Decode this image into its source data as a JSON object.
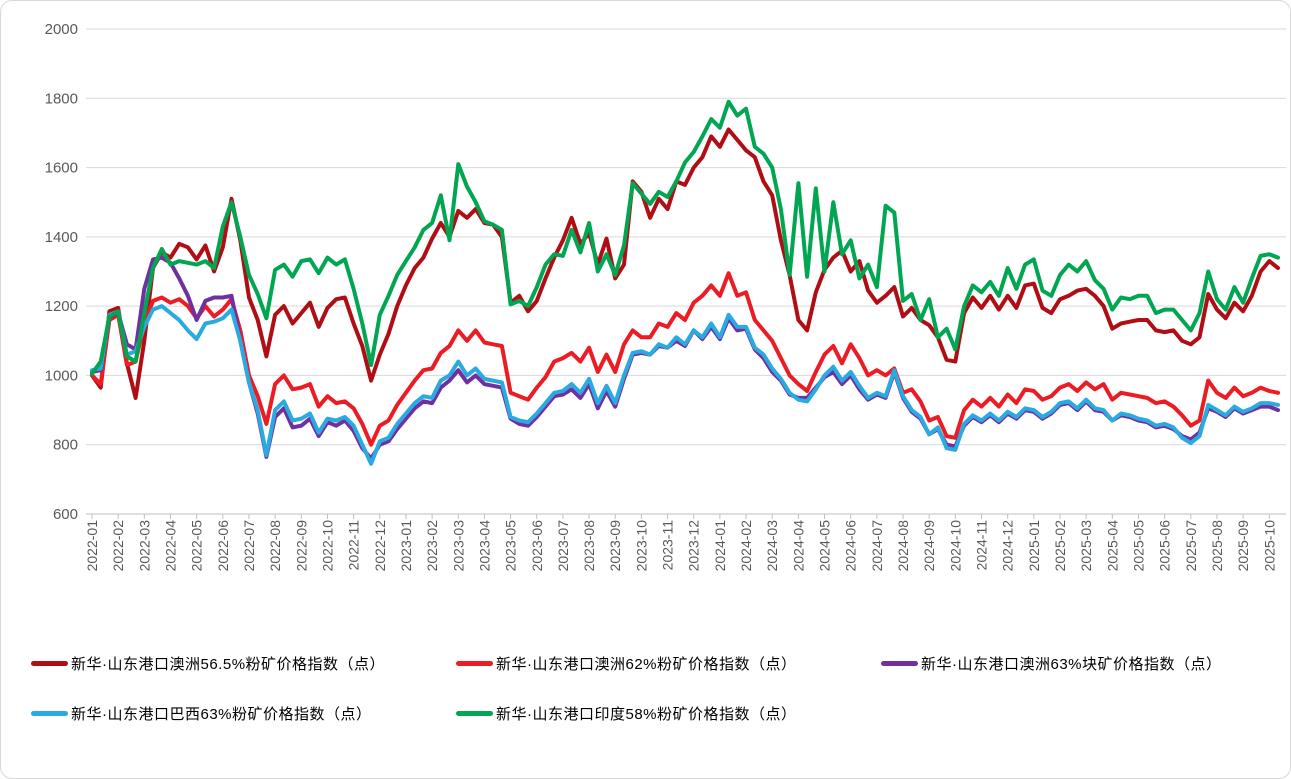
{
  "chart_data": {
    "type": "line",
    "title": "",
    "xlabel": "",
    "ylabel": "",
    "ylim": [
      600,
      2000
    ],
    "y_tick_step": 200,
    "y_tick_labels": [
      "600",
      "800",
      "1000",
      "1200",
      "1400",
      "1600",
      "1800",
      "2000"
    ],
    "grid": "horizontal",
    "legend_position": "bottom",
    "points_per_month": 3,
    "x_labels": [
      "2022-01",
      "2022-02",
      "2022-03",
      "2022-04",
      "2022-05",
      "2022-06",
      "2022-07",
      "2022-08",
      "2022-09",
      "2022-10",
      "2022-11",
      "2022-12",
      "2023-01",
      "2023-02",
      "2023-03",
      "2023-04",
      "2023-05",
      "2023-06",
      "2023-07",
      "2023-08",
      "2023-09",
      "2023-10",
      "2023-11",
      "2023-12",
      "2024-01",
      "2024-02",
      "2024-03",
      "2024-04",
      "2024-05",
      "2024-06",
      "2024-07",
      "2024-08",
      "2024-09",
      "2024-10",
      "2024-11",
      "2024-12",
      "2025-01",
      "2025-02",
      "2025-03",
      "2025-04",
      "2025-05",
      "2025-06",
      "2025-07",
      "2025-08",
      "2025-09",
      "2025-10"
    ],
    "legend_rows": [
      [
        0,
        1,
        2
      ],
      [
        3,
        4
      ]
    ],
    "colors": {
      "grid": "#D9D9D9",
      "axis": "#BFBFBF",
      "tick_label": "#595959",
      "legend_text": "#000000",
      "background": "#FFFFFF"
    },
    "series": [
      {
        "name": "新华·山东港口澳洲56.5%粉矿价格指数（点）",
        "id": "au-56-5-fines",
        "color": "#B00E15",
        "values": [
          1000,
          965,
          1185,
          1195,
          1035,
          935,
          1100,
          1310,
          1355,
          1340,
          1380,
          1370,
          1335,
          1375,
          1300,
          1370,
          1510,
          1390,
          1225,
          1160,
          1055,
          1175,
          1200,
          1150,
          1180,
          1210,
          1140,
          1195,
          1220,
          1225,
          1150,
          1085,
          985,
          1060,
          1120,
          1200,
          1260,
          1310,
          1340,
          1395,
          1440,
          1400,
          1475,
          1455,
          1480,
          1440,
          1435,
          1400,
          1210,
          1230,
          1185,
          1215,
          1280,
          1340,
          1390,
          1455,
          1380,
          1410,
          1320,
          1395,
          1280,
          1320,
          1560,
          1530,
          1455,
          1510,
          1480,
          1560,
          1550,
          1600,
          1630,
          1690,
          1660,
          1710,
          1680,
          1650,
          1630,
          1560,
          1520,
          1390,
          1290,
          1160,
          1130,
          1240,
          1305,
          1340,
          1360,
          1300,
          1330,
          1245,
          1210,
          1230,
          1255,
          1170,
          1195,
          1160,
          1145,
          1110,
          1045,
          1040,
          1180,
          1225,
          1195,
          1230,
          1190,
          1230,
          1195,
          1260,
          1265,
          1195,
          1180,
          1220,
          1230,
          1245,
          1250,
          1230,
          1200,
          1135,
          1150,
          1155,
          1160,
          1160,
          1130,
          1125,
          1130,
          1100,
          1090,
          1110,
          1235,
          1190,
          1165,
          1210,
          1185,
          1230,
          1300,
          1330,
          1310
        ]
      },
      {
        "name": "新华·山东港口澳洲62%粉矿价格指数（点）",
        "id": "au-62-fines",
        "color": "#EC1C24",
        "values": [
          1000,
          975,
          1160,
          1175,
          1030,
          1040,
          1150,
          1215,
          1225,
          1210,
          1220,
          1200,
          1165,
          1200,
          1170,
          1190,
          1220,
          1130,
          1000,
          940,
          860,
          975,
          1000,
          960,
          965,
          975,
          910,
          940,
          920,
          925,
          905,
          860,
          800,
          855,
          870,
          915,
          950,
          985,
          1015,
          1020,
          1065,
          1085,
          1130,
          1100,
          1130,
          1095,
          1090,
          1085,
          950,
          940,
          930,
          965,
          995,
          1040,
          1050,
          1065,
          1040,
          1080,
          1010,
          1060,
          1010,
          1090,
          1130,
          1110,
          1110,
          1150,
          1140,
          1180,
          1160,
          1210,
          1230,
          1260,
          1230,
          1295,
          1230,
          1240,
          1160,
          1130,
          1100,
          1050,
          1000,
          975,
          955,
          1010,
          1060,
          1085,
          1035,
          1090,
          1050,
          1000,
          1015,
          1000,
          1020,
          950,
          960,
          925,
          870,
          880,
          825,
          820,
          900,
          930,
          910,
          935,
          910,
          945,
          920,
          960,
          955,
          930,
          940,
          965,
          975,
          955,
          980,
          960,
          975,
          930,
          950,
          945,
          940,
          935,
          920,
          925,
          910,
          885,
          855,
          870,
          985,
          950,
          935,
          965,
          940,
          950,
          965,
          955,
          950
        ]
      },
      {
        "name": "新华·山东港口澳洲63%块矿价格指数（点）",
        "id": "au-63-lump",
        "color": "#7030A0",
        "values": [
          1010,
          1015,
          1170,
          1180,
          1090,
          1075,
          1250,
          1335,
          1340,
          1325,
          1280,
          1230,
          1160,
          1215,
          1225,
          1225,
          1230,
          1100,
          980,
          890,
          765,
          880,
          905,
          850,
          855,
          875,
          825,
          865,
          855,
          870,
          840,
          790,
          760,
          800,
          810,
          845,
          875,
          905,
          925,
          920,
          965,
          985,
          1015,
          980,
          1000,
          975,
          970,
          965,
          875,
          860,
          855,
          880,
          910,
          940,
          945,
          960,
          935,
          975,
          905,
          955,
          910,
          990,
          1060,
          1065,
          1060,
          1085,
          1080,
          1100,
          1085,
          1130,
          1105,
          1140,
          1105,
          1165,
          1130,
          1135,
          1075,
          1050,
          1010,
          985,
          945,
          935,
          935,
          965,
          995,
          1010,
          975,
          1000,
          960,
          930,
          945,
          935,
          1010,
          935,
          895,
          875,
          830,
          845,
          800,
          795,
          855,
          880,
          865,
          885,
          865,
          890,
          875,
          900,
          895,
          875,
          890,
          915,
          920,
          900,
          925,
          900,
          895,
          870,
          885,
          880,
          870,
          865,
          850,
          855,
          845,
          825,
          815,
          835,
          905,
          895,
          880,
          905,
          890,
          900,
          910,
          910,
          900
        ]
      },
      {
        "name": "新华·山东港口巴西63%粉矿价格指数（点）",
        "id": "br-63-fines",
        "color": "#29ABE2",
        "values": [
          1015,
          1020,
          1175,
          1185,
          1060,
          1070,
          1140,
          1190,
          1200,
          1180,
          1160,
          1130,
          1105,
          1150,
          1155,
          1165,
          1190,
          1100,
          980,
          900,
          770,
          900,
          925,
          870,
          875,
          890,
          835,
          875,
          870,
          880,
          855,
          800,
          745,
          810,
          820,
          860,
          890,
          920,
          940,
          935,
          985,
          1000,
          1040,
          1000,
          1020,
          990,
          985,
          980,
          880,
          870,
          865,
          890,
          920,
          950,
          955,
          975,
          950,
          990,
          920,
          970,
          920,
          1000,
          1065,
          1070,
          1060,
          1090,
          1080,
          1110,
          1090,
          1130,
          1110,
          1150,
          1110,
          1175,
          1140,
          1140,
          1080,
          1060,
          1020,
          990,
          950,
          930,
          925,
          960,
          1000,
          1025,
          985,
          1010,
          970,
          935,
          950,
          940,
          1015,
          940,
          900,
          880,
          830,
          850,
          790,
          785,
          860,
          885,
          870,
          890,
          870,
          895,
          880,
          905,
          900,
          880,
          895,
          920,
          925,
          905,
          930,
          905,
          900,
          870,
          890,
          885,
          875,
          870,
          855,
          860,
          850,
          820,
          805,
          825,
          915,
          900,
          885,
          910,
          895,
          905,
          920,
          920,
          915
        ]
      },
      {
        "name": "新华·山东港口印度58%粉矿价格指数（点）",
        "id": "in-58-fines",
        "color": "#00A651",
        "values": [
          1005,
          1040,
          1170,
          1185,
          1055,
          1040,
          1180,
          1310,
          1365,
          1320,
          1330,
          1325,
          1320,
          1330,
          1310,
          1430,
          1500,
          1400,
          1290,
          1235,
          1165,
          1305,
          1320,
          1285,
          1330,
          1335,
          1295,
          1340,
          1320,
          1335,
          1250,
          1150,
          1030,
          1175,
          1230,
          1290,
          1330,
          1370,
          1420,
          1440,
          1520,
          1390,
          1610,
          1545,
          1500,
          1445,
          1435,
          1420,
          1205,
          1215,
          1200,
          1255,
          1320,
          1350,
          1345,
          1420,
          1355,
          1440,
          1300,
          1350,
          1290,
          1375,
          1555,
          1525,
          1495,
          1530,
          1515,
          1560,
          1615,
          1645,
          1690,
          1740,
          1715,
          1790,
          1750,
          1770,
          1660,
          1640,
          1600,
          1480,
          1290,
          1555,
          1285,
          1540,
          1300,
          1500,
          1350,
          1390,
          1280,
          1320,
          1255,
          1490,
          1470,
          1215,
          1235,
          1160,
          1220,
          1110,
          1135,
          1075,
          1200,
          1260,
          1240,
          1270,
          1230,
          1310,
          1250,
          1320,
          1335,
          1245,
          1230,
          1290,
          1320,
          1300,
          1330,
          1275,
          1250,
          1190,
          1225,
          1220,
          1230,
          1230,
          1180,
          1190,
          1190,
          1160,
          1130,
          1180,
          1300,
          1220,
          1190,
          1255,
          1210,
          1280,
          1345,
          1350,
          1340
        ]
      }
    ]
  }
}
